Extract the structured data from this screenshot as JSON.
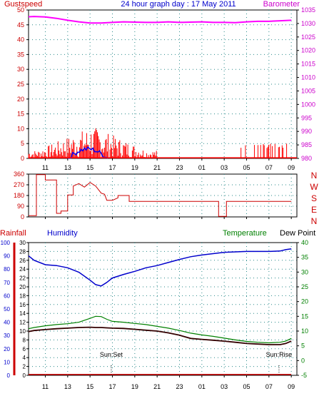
{
  "title": "24 hour graph day : 17 May 2011",
  "time_ticks": [
    "11",
    "13",
    "15",
    "17",
    "19",
    "21",
    "23",
    "01",
    "03",
    "05",
    "07",
    "09"
  ],
  "colors": {
    "gust": "#ff0000",
    "wind": "#0000ff",
    "barometer": "#ff00ff",
    "direction": "#cc0000",
    "humidity": "#0000cc",
    "temperature": "#008000",
    "dew_point": "#330000",
    "rainfall": "#cc0000",
    "grid": "#2a8a8a",
    "left_axis": "#cc0000",
    "right_axis": "#cc00cc"
  },
  "chart_data": [
    {
      "type": "line",
      "name": "wind",
      "ylabel_left": "Gustspeed",
      "ylabel_right": "Barometer",
      "yticks_left": [
        "0",
        "5",
        "10",
        "15",
        "20",
        "25",
        "30",
        "35",
        "40",
        "45",
        "50"
      ],
      "ylim_left": [
        0,
        50
      ],
      "yticks_right": [
        "980",
        "985",
        "990",
        "995",
        "1000",
        "1005",
        "1010",
        "1015",
        "1020",
        "1025",
        "1030",
        "1035"
      ],
      "ylim_right": [
        980,
        1035
      ],
      "barometer": {
        "x": [
          9.5,
          10,
          11,
          12,
          13,
          14,
          15,
          16,
          17,
          18,
          19,
          20,
          21,
          22,
          23,
          24,
          25,
          26,
          27,
          28,
          29,
          30,
          31,
          32,
          33
        ],
        "values": [
          1032.5,
          1032.6,
          1032.4,
          1031.9,
          1031.2,
          1030.6,
          1030.2,
          1030.2,
          1030.4,
          1030.6,
          1030.5,
          1030.4,
          1030.4,
          1030.6,
          1030.4,
          1030.5,
          1030.6,
          1030.4,
          1030.4,
          1030.3,
          1030.6,
          1030.8,
          1030.8,
          1031.0,
          1031.2
        ]
      },
      "gust_activity": [
        {
          "start": 9.5,
          "end": 21.0,
          "peak": 11
        },
        {
          "start": 28.5,
          "end": 33.0,
          "peak": 5
        }
      ]
    },
    {
      "type": "line",
      "name": "direction",
      "yticks_left": [
        "0",
        "90",
        "180",
        "270",
        "360"
      ],
      "ylim": [
        0,
        360
      ],
      "direction_labels": [
        "N",
        "W",
        "S",
        "E",
        "N"
      ],
      "x": [
        9.5,
        10.2,
        10.2,
        11.0,
        11.0,
        12.0,
        12.0,
        12.4,
        12.4,
        13.0,
        13.0,
        13.5,
        13.5,
        14.0,
        14.5,
        15.0,
        15.5,
        16.0,
        16.3,
        16.5,
        17.0,
        17.5,
        17.5,
        18.5,
        18.5,
        20.0,
        26.5,
        26.5,
        27.2,
        27.2,
        33.0
      ],
      "values": [
        10,
        10,
        355,
        355,
        310,
        310,
        30,
        30,
        50,
        50,
        185,
        185,
        260,
        280,
        250,
        290,
        260,
        200,
        190,
        140,
        140,
        160,
        180,
        180,
        130,
        130,
        130,
        5,
        5,
        130,
        130
      ]
    },
    {
      "type": "line",
      "name": "climate",
      "ylabel_left_1": "Rainfall",
      "ylabel_left_2": "Humidity",
      "ylabel_right_1": "Temperature",
      "ylabel_right_2": "Dew Point",
      "rain_ticks": [
        "0",
        "10",
        "20",
        "30",
        "40",
        "50",
        "60",
        "70",
        "80",
        "90",
        "100"
      ],
      "rain_ylim": [
        0,
        100
      ],
      "humidity_ticks": [
        "0",
        "2",
        "4",
        "6",
        "8",
        "10",
        "12",
        "14",
        "16",
        "18",
        "20",
        "22",
        "24",
        "26",
        "28",
        "30"
      ],
      "humidity_ylim": [
        0,
        30
      ],
      "temp_ticks": [
        "-5",
        "0",
        "5",
        "10",
        "15",
        "20",
        "25",
        "30",
        "35",
        "40"
      ],
      "temp_ylim": [
        -5,
        40
      ],
      "sunset_label": "Sun:Set",
      "sunset_x": 16.9,
      "sunrise_label": "Sun:Rise",
      "sunrise_x": 31.9,
      "humidity": {
        "x": [
          9.5,
          10,
          11,
          12,
          13,
          14,
          15,
          15.5,
          16,
          16.5,
          17,
          18,
          19,
          20,
          21,
          22,
          23,
          24,
          25,
          26,
          27,
          28,
          29,
          30,
          31,
          32,
          32.5,
          33
        ],
        "values": [
          27.0,
          26.0,
          25.0,
          24.8,
          24.3,
          23.3,
          21.5,
          20.5,
          20.2,
          21.0,
          22.0,
          22.8,
          23.5,
          24.3,
          24.8,
          25.5,
          26.2,
          26.8,
          27.2,
          27.5,
          27.8,
          27.9,
          28.0,
          28.0,
          28.0,
          28.1,
          28.4,
          28.6
        ]
      },
      "temperature": {
        "x": [
          9.5,
          10,
          11,
          12,
          13,
          14,
          15,
          15.5,
          16,
          16.5,
          17,
          18,
          19,
          20,
          21,
          22,
          23,
          24,
          25,
          26,
          27,
          28,
          29,
          30,
          31,
          32,
          32.5,
          33
        ],
        "values": [
          10.8,
          11.2,
          11.8,
          12.2,
          12.5,
          13.0,
          14.3,
          15.0,
          14.9,
          14.0,
          13.3,
          13.0,
          12.6,
          12.2,
          11.6,
          11.0,
          10.2,
          9.3,
          8.7,
          8.2,
          7.6,
          7.0,
          6.5,
          6.2,
          6.0,
          6.2,
          6.6,
          7.5
        ]
      },
      "dew_point": {
        "x": [
          9.5,
          10,
          11,
          12,
          13,
          14,
          15,
          15.5,
          16,
          16.5,
          17,
          18,
          19,
          20,
          21,
          22,
          23,
          24,
          25,
          26,
          27,
          28,
          29,
          30,
          31,
          32,
          32.5,
          33
        ],
        "values": [
          9.8,
          10.2,
          10.5,
          10.8,
          11.0,
          11.2,
          11.3,
          11.2,
          11.2,
          11.1,
          11.0,
          10.9,
          10.6,
          10.3,
          10.0,
          9.4,
          8.6,
          7.5,
          7.2,
          6.9,
          6.6,
          6.2,
          5.8,
          5.6,
          5.4,
          5.4,
          5.8,
          6.6
        ]
      },
      "rainfall": {
        "x": [
          9.5,
          33
        ],
        "values": [
          0.6,
          0.6
        ]
      }
    }
  ]
}
